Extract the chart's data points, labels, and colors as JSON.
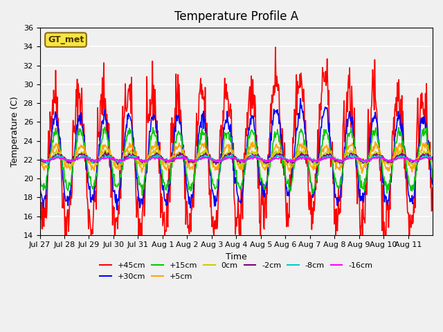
{
  "title": "Temperature Profile A",
  "xlabel": "Time",
  "ylabel": "Temperature (C)",
  "ylim": [
    14,
    36
  ],
  "yticks": [
    14,
    16,
    18,
    20,
    22,
    24,
    26,
    28,
    30,
    32,
    34,
    36
  ],
  "series": [
    {
      "label": "+45cm",
      "color": "#FF0000",
      "lw": 1.2
    },
    {
      "label": "+30cm",
      "color": "#0000FF",
      "lw": 1.2
    },
    {
      "label": "+15cm",
      "color": "#00CC00",
      "lw": 1.2
    },
    {
      "label": "+5cm",
      "color": "#FFA500",
      "lw": 1.2
    },
    {
      "label": "0cm",
      "color": "#CCCC00",
      "lw": 1.2
    },
    {
      "label": "-2cm",
      "color": "#800080",
      "lw": 1.2
    },
    {
      "label": "-8cm",
      "color": "#00CCCC",
      "lw": 1.2
    },
    {
      "label": "-16cm",
      "color": "#FF00FF",
      "lw": 1.2
    }
  ],
  "xtick_labels": [
    "Jul 27",
    "Jul 28",
    "Jul 29",
    "Jul 30",
    "Jul 31",
    "Aug 1",
    "Aug 2",
    "Aug 3",
    "Aug 4",
    "Aug 5",
    "Aug 6",
    "Aug 7",
    "Aug 8",
    "Aug 9",
    "Aug 10",
    "Aug 11"
  ],
  "gt_met_label": "GT_met",
  "background_color": "#F0F0F0",
  "plot_bg_color": "#F0F0F0",
  "grid_color": "#FFFFFF"
}
